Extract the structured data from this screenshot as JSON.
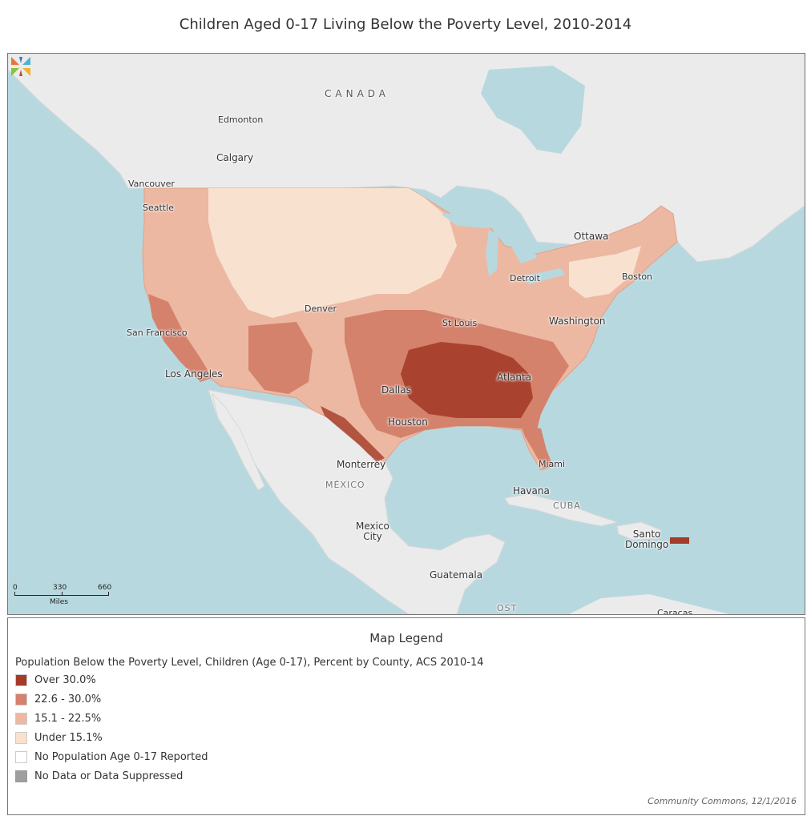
{
  "title": "Children Aged 0-17 Living Below the Poverty Level, 2010-2014",
  "map": {
    "labels": {
      "canada": "CANADA",
      "edmonton": "Edmonton",
      "calgary": "Calgary",
      "vancouver": "Vancouver",
      "seattle": "Seattle",
      "ottawa": "Ottawa",
      "boston": "Boston",
      "detroit": "Detroit",
      "denver": "Denver",
      "st_louis": "St Louis",
      "washington": "Washington",
      "san_francisco": "San Francisco",
      "los_angeles": "Los Angeles",
      "dallas": "Dallas",
      "atlanta": "Atlanta",
      "houston": "Houston",
      "miami": "Miami",
      "monterrey": "Monterrey",
      "mexico": "MÉXICO",
      "havana": "Havana",
      "cuba": "CUBA",
      "mexico_city": "Mexico\nCity",
      "santo_domingo": "Santo\nDomingo",
      "guatemala": "Guatemala",
      "costa_partial": "OST",
      "caracas_partial": "Caracas"
    },
    "scale": {
      "ticks": [
        "0",
        "330",
        "660"
      ],
      "unit": "Miles"
    },
    "colors": {
      "water": "#b8d8df",
      "land": "#ebebeb",
      "over_30": "#a43b28",
      "range_22_30": "#d4826c",
      "range_15_22": "#ecb8a2",
      "under_15": "#f9e1cf",
      "no_pop": "#ffffff",
      "no_data": "#9e9e9e"
    }
  },
  "legend": {
    "title": "Map Legend",
    "subtitle": "Population Below the Poverty Level, Children (Age 0-17), Percent by County, ACS 2010-14",
    "items": [
      {
        "label": "Over 30.0%",
        "color": "#a43b28"
      },
      {
        "label": "22.6 - 30.0%",
        "color": "#d4826c"
      },
      {
        "label": "15.1 - 22.5%",
        "color": "#ecb8a2"
      },
      {
        "label": "Under 15.1%",
        "color": "#f9e1cf"
      },
      {
        "label": "No Population Age 0-17 Reported",
        "color": "#ffffff"
      },
      {
        "label": "No Data or Data Suppressed",
        "color": "#9e9e9e"
      }
    ],
    "credit": "Community Commons, 12/1/2016"
  }
}
